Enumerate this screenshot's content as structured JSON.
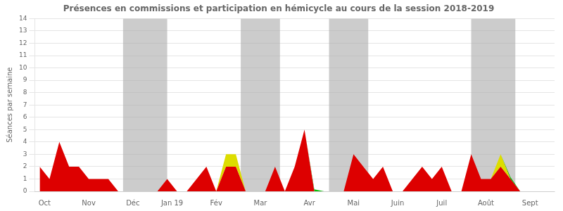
{
  "chart_data": {
    "type": "area",
    "title": "Présences en commissions et participation en hémicycle au cours de la session 2018-2019",
    "y_label": "Séances par semaine",
    "stacked": true,
    "grid": true,
    "x": [
      0,
      1,
      2,
      3,
      4,
      5,
      6,
      7,
      8,
      9,
      10,
      11,
      12,
      13,
      14,
      15,
      16,
      17,
      18,
      19,
      20,
      21,
      22,
      23,
      24,
      25,
      26,
      27,
      28,
      29,
      30,
      31,
      32,
      33,
      34,
      35,
      36,
      37,
      38,
      39,
      40,
      41,
      42,
      43,
      44,
      45,
      46,
      47,
      48,
      49,
      50,
      51,
      52
    ],
    "xlim": [
      -0.5,
      52.5
    ],
    "xticks": [
      {
        "value": 0.5,
        "label": "Oct"
      },
      {
        "value": 5.0,
        "label": "Nov"
      },
      {
        "value": 9.5,
        "label": "Déc"
      },
      {
        "value": 13.5,
        "label": "Jan 19"
      },
      {
        "value": 18.0,
        "label": "Fév"
      },
      {
        "value": 22.5,
        "label": "Mar"
      },
      {
        "value": 27.5,
        "label": "Avr"
      },
      {
        "value": 32.0,
        "label": "Mai"
      },
      {
        "value": 36.5,
        "label": "Juin"
      },
      {
        "value": 41.0,
        "label": "Juil"
      },
      {
        "value": 45.5,
        "label": "Août"
      },
      {
        "value": 50.0,
        "label": "Sept"
      }
    ],
    "ylim": [
      0,
      14
    ],
    "yticks": [
      0,
      1,
      2,
      3,
      4,
      5,
      6,
      7,
      8,
      9,
      10,
      11,
      12,
      13,
      14
    ],
    "series": [
      {
        "color": "#dd0000",
        "values": [
          2,
          1,
          4,
          2,
          2,
          1,
          1,
          1,
          0,
          0,
          0,
          0,
          0,
          1,
          0,
          0,
          1,
          2,
          0,
          2,
          2,
          0,
          0,
          0,
          2,
          0,
          2,
          5,
          0,
          0,
          0,
          0,
          3,
          2,
          1,
          2,
          0,
          0,
          1,
          2,
          1,
          2,
          0,
          0,
          3,
          1,
          1,
          2,
          1,
          0,
          0,
          0,
          0
        ]
      },
      {
        "color": "#dddd00",
        "values": [
          0,
          0,
          0,
          0,
          0,
          0,
          0,
          0,
          0,
          0,
          0,
          0,
          0,
          0,
          0,
          0,
          0,
          0,
          0,
          1,
          1,
          0,
          0,
          0,
          0,
          0,
          0,
          0,
          0,
          0,
          0,
          0,
          0,
          0,
          0,
          0,
          0,
          0,
          0,
          0,
          0,
          0,
          0,
          0,
          0,
          0,
          0,
          1,
          0,
          0,
          0,
          0,
          0
        ]
      },
      {
        "color": "#00bb00",
        "values": [
          0,
          0,
          0,
          0,
          0,
          0,
          0,
          0,
          0,
          0,
          0,
          0,
          0,
          0,
          0,
          0,
          0,
          0,
          0,
          0,
          0,
          0,
          0,
          0,
          0,
          0,
          0,
          0,
          0.15,
          0,
          0,
          0,
          0,
          0,
          0,
          0,
          0,
          0,
          0,
          0,
          0,
          0,
          0,
          0,
          0,
          0,
          0,
          0,
          0.15,
          0,
          0,
          0,
          0
        ]
      }
    ],
    "bands": [
      [
        8.5,
        13.0
      ],
      [
        20.5,
        24.5
      ],
      [
        29.5,
        33.5
      ],
      [
        44.0,
        48.5
      ]
    ],
    "band_color": "#aaaaaa"
  }
}
